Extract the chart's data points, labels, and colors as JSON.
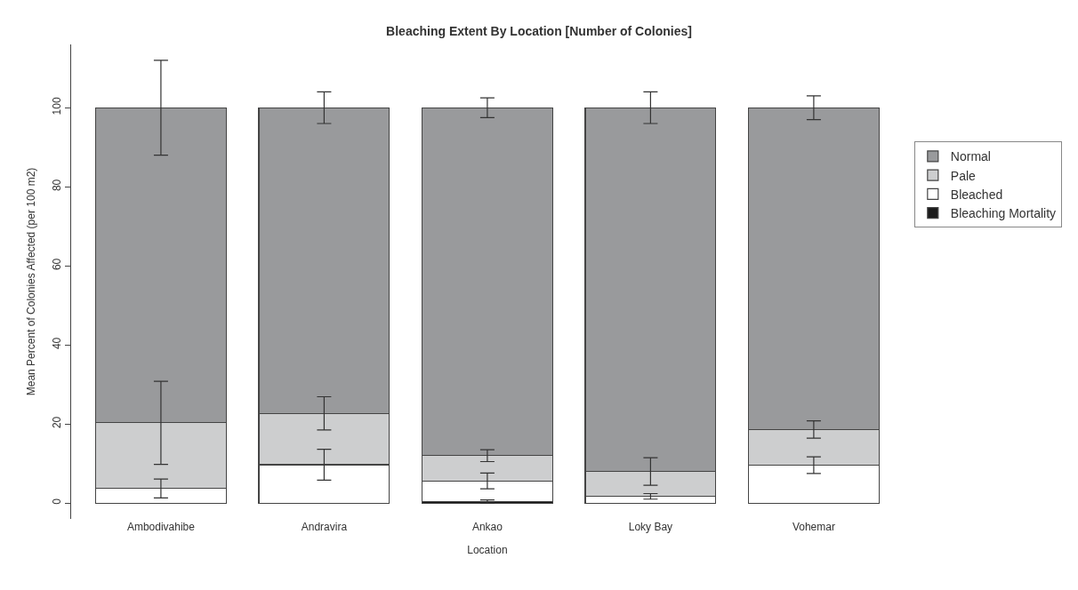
{
  "chart_data": {
    "type": "bar",
    "title": "Bleaching Extent By Location [Number of Colonies]",
    "xlabel": "Location",
    "ylabel": "Mean Percent of Colonies Affected (per 100 m2)",
    "categories": [
      "Ambodivahibe",
      "Andravira",
      "Ankao",
      "Loky Bay",
      "Vohemar"
    ],
    "stacked": true,
    "series": [
      {
        "name": "Bleaching Mortality",
        "color": "#1a1a1a",
        "values": [
          0,
          0,
          0.4,
          0,
          0
        ],
        "errors": [
          null,
          null,
          0.4,
          null,
          null
        ]
      },
      {
        "name": "Bleached",
        "color": "#ffffff",
        "values": [
          3.7,
          9.7,
          5.2,
          1.7,
          9.6
        ],
        "errors": [
          2.4,
          3.9,
          2,
          0.7,
          2.1
        ]
      },
      {
        "name": "Pale",
        "color": "#cdcecf",
        "values": [
          16.6,
          13.0,
          6.4,
          6.3,
          9.0
        ],
        "errors": [
          10.5,
          4.2,
          1.5,
          3.5,
          2.2
        ]
      },
      {
        "name": "Normal",
        "color": "#999a9c",
        "values": [
          79.7,
          77.3,
          88.0,
          92.0,
          81.4
        ],
        "errors": [
          12,
          4,
          2.5,
          4,
          3
        ]
      }
    ],
    "ylim": [
      -4,
      116
    ],
    "yticks": [
      0,
      20,
      40,
      60,
      80,
      100
    ],
    "legend": "top right"
  }
}
